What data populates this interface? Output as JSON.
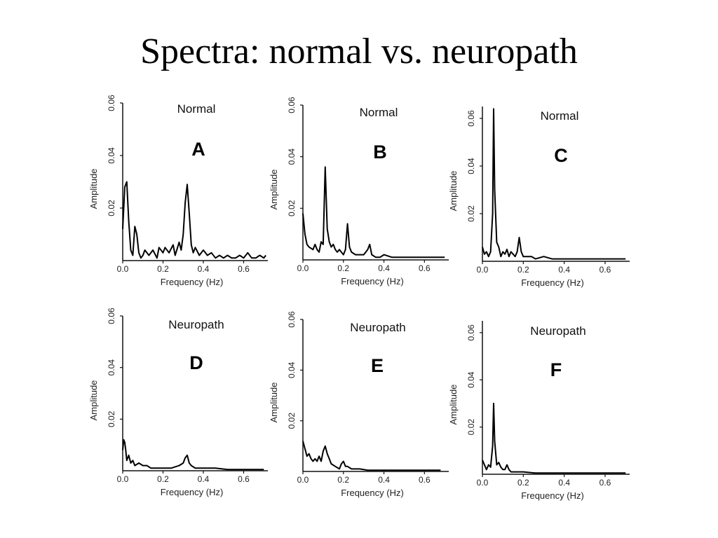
{
  "slide": {
    "title": "Spectra: normal vs. neuropath"
  },
  "chart_data": [
    {
      "type": "line",
      "title": "Normal",
      "panel": "A",
      "xlabel": "Frequency (Hz)",
      "ylabel": "Amplitude",
      "xlim": [
        0,
        0.72
      ],
      "ylim": [
        0,
        0.06
      ],
      "xticks": [
        "0.0",
        "0.2",
        "0.4",
        "0.6"
      ],
      "yticks": [
        "0.02",
        "0.04",
        "0.06"
      ],
      "x": [
        0.0,
        0.01,
        0.02,
        0.03,
        0.04,
        0.05,
        0.06,
        0.07,
        0.08,
        0.09,
        0.1,
        0.11,
        0.13,
        0.15,
        0.17,
        0.18,
        0.2,
        0.21,
        0.23,
        0.25,
        0.26,
        0.28,
        0.29,
        0.3,
        0.31,
        0.32,
        0.33,
        0.34,
        0.35,
        0.36,
        0.38,
        0.4,
        0.42,
        0.44,
        0.46,
        0.48,
        0.5,
        0.52,
        0.54,
        0.56,
        0.58,
        0.6,
        0.62,
        0.64,
        0.66,
        0.68,
        0.7,
        0.71
      ],
      "y": [
        0.012,
        0.028,
        0.03,
        0.015,
        0.004,
        0.002,
        0.013,
        0.01,
        0.003,
        0.001,
        0.002,
        0.004,
        0.002,
        0.004,
        0.001,
        0.005,
        0.003,
        0.005,
        0.003,
        0.006,
        0.002,
        0.007,
        0.004,
        0.01,
        0.022,
        0.029,
        0.018,
        0.006,
        0.003,
        0.005,
        0.002,
        0.004,
        0.002,
        0.003,
        0.001,
        0.002,
        0.001,
        0.002,
        0.001,
        0.001,
        0.002,
        0.001,
        0.003,
        0.001,
        0.001,
        0.002,
        0.001,
        0.002
      ]
    },
    {
      "type": "line",
      "title": "Normal",
      "panel": "B",
      "xlabel": "Frequency (Hz)",
      "ylabel": "Amplitude",
      "xlim": [
        0,
        0.72
      ],
      "ylim": [
        0,
        0.06
      ],
      "xticks": [
        "0.0",
        "0.2",
        "0.4",
        "0.6"
      ],
      "yticks": [
        "0.02",
        "0.04",
        "0.06"
      ],
      "x": [
        0.0,
        0.01,
        0.02,
        0.03,
        0.05,
        0.06,
        0.07,
        0.08,
        0.09,
        0.1,
        0.11,
        0.12,
        0.13,
        0.14,
        0.15,
        0.16,
        0.17,
        0.18,
        0.2,
        0.21,
        0.22,
        0.23,
        0.24,
        0.26,
        0.28,
        0.3,
        0.32,
        0.33,
        0.34,
        0.36,
        0.38,
        0.4,
        0.44,
        0.48,
        0.52,
        0.56,
        0.6,
        0.64,
        0.68,
        0.7
      ],
      "y": [
        0.018,
        0.01,
        0.006,
        0.005,
        0.004,
        0.006,
        0.004,
        0.003,
        0.007,
        0.006,
        0.036,
        0.012,
        0.007,
        0.005,
        0.006,
        0.004,
        0.003,
        0.004,
        0.002,
        0.004,
        0.014,
        0.005,
        0.003,
        0.002,
        0.002,
        0.002,
        0.004,
        0.006,
        0.002,
        0.001,
        0.001,
        0.002,
        0.001,
        0.001,
        0.001,
        0.001,
        0.001,
        0.001,
        0.001,
        0.001
      ]
    },
    {
      "type": "line",
      "title": "Normal",
      "panel": "C",
      "xlabel": "Frequency (Hz)",
      "ylabel": "Amplitude",
      "xlim": [
        0,
        0.72
      ],
      "ylim": [
        0,
        0.065
      ],
      "xticks": [
        "0.0",
        "0.2",
        "0.4",
        "0.6"
      ],
      "yticks": [
        "0.02",
        "0.04",
        "0.06"
      ],
      "x": [
        0.0,
        0.01,
        0.02,
        0.03,
        0.04,
        0.05,
        0.055,
        0.06,
        0.07,
        0.08,
        0.09,
        0.1,
        0.11,
        0.12,
        0.13,
        0.14,
        0.16,
        0.17,
        0.18,
        0.19,
        0.2,
        0.22,
        0.24,
        0.26,
        0.3,
        0.34,
        0.4,
        0.46,
        0.52,
        0.58,
        0.64,
        0.7
      ],
      "y": [
        0.006,
        0.003,
        0.004,
        0.002,
        0.004,
        0.02,
        0.064,
        0.03,
        0.008,
        0.006,
        0.002,
        0.004,
        0.003,
        0.005,
        0.002,
        0.004,
        0.002,
        0.004,
        0.01,
        0.004,
        0.002,
        0.002,
        0.002,
        0.001,
        0.002,
        0.001,
        0.001,
        0.001,
        0.001,
        0.001,
        0.001,
        0.001
      ]
    },
    {
      "type": "line",
      "title": "Neuropath",
      "panel": "D",
      "xlabel": "Frequency (Hz)",
      "ylabel": "Amplitude",
      "xlim": [
        0,
        0.72
      ],
      "ylim": [
        0,
        0.06
      ],
      "xticks": [
        "0.0",
        "0.2",
        "0.4",
        "0.6"
      ],
      "yticks": [
        "0.02",
        "0.04",
        "0.06"
      ],
      "x": [
        0.0,
        0.005,
        0.01,
        0.015,
        0.02,
        0.03,
        0.04,
        0.05,
        0.06,
        0.08,
        0.1,
        0.12,
        0.14,
        0.16,
        0.2,
        0.24,
        0.28,
        0.3,
        0.31,
        0.32,
        0.33,
        0.34,
        0.36,
        0.4,
        0.46,
        0.52,
        0.58,
        0.64,
        0.7
      ],
      "y": [
        0.008,
        0.012,
        0.011,
        0.008,
        0.004,
        0.006,
        0.003,
        0.004,
        0.002,
        0.003,
        0.002,
        0.002,
        0.001,
        0.001,
        0.001,
        0.001,
        0.002,
        0.003,
        0.005,
        0.006,
        0.003,
        0.002,
        0.001,
        0.001,
        0.001,
        0.0005,
        0.0005,
        0.0005,
        0.0005
      ]
    },
    {
      "type": "line",
      "title": "Neuropath",
      "panel": "E",
      "xlabel": "Frequency (Hz)",
      "ylabel": "Amplitude",
      "xlim": [
        0,
        0.72
      ],
      "ylim": [
        0,
        0.06
      ],
      "xticks": [
        "0.0",
        "0.2",
        "0.4",
        "0.6"
      ],
      "yticks": [
        "0.02",
        "0.04",
        "0.06"
      ],
      "x": [
        0.0,
        0.01,
        0.02,
        0.03,
        0.04,
        0.05,
        0.06,
        0.07,
        0.08,
        0.09,
        0.1,
        0.11,
        0.12,
        0.13,
        0.14,
        0.16,
        0.18,
        0.19,
        0.2,
        0.21,
        0.22,
        0.24,
        0.28,
        0.32,
        0.38,
        0.44,
        0.5,
        0.56,
        0.62,
        0.68
      ],
      "y": [
        0.012,
        0.009,
        0.006,
        0.007,
        0.005,
        0.004,
        0.005,
        0.004,
        0.006,
        0.004,
        0.008,
        0.01,
        0.007,
        0.005,
        0.003,
        0.002,
        0.001,
        0.003,
        0.004,
        0.002,
        0.002,
        0.001,
        0.001,
        0.0005,
        0.0005,
        0.0005,
        0.0005,
        0.0005,
        0.0005,
        0.0005
      ]
    },
    {
      "type": "line",
      "title": "Neuropath",
      "panel": "F",
      "xlabel": "Frequency (Hz)",
      "ylabel": "Amplitude",
      "xlim": [
        0,
        0.72
      ],
      "ylim": [
        0,
        0.065
      ],
      "xticks": [
        "0.0",
        "0.2",
        "0.4",
        "0.6"
      ],
      "yticks": [
        "0.02",
        "0.04",
        "0.06"
      ],
      "x": [
        0.0,
        0.01,
        0.02,
        0.03,
        0.04,
        0.05,
        0.055,
        0.06,
        0.07,
        0.08,
        0.09,
        0.1,
        0.11,
        0.12,
        0.13,
        0.14,
        0.16,
        0.2,
        0.26,
        0.32,
        0.4,
        0.48,
        0.56,
        0.64,
        0.7
      ],
      "y": [
        0.006,
        0.004,
        0.002,
        0.004,
        0.003,
        0.012,
        0.03,
        0.014,
        0.004,
        0.005,
        0.003,
        0.002,
        0.002,
        0.004,
        0.002,
        0.001,
        0.001,
        0.001,
        0.0005,
        0.0005,
        0.0005,
        0.0005,
        0.0005,
        0.0005,
        0.0005
      ]
    }
  ]
}
